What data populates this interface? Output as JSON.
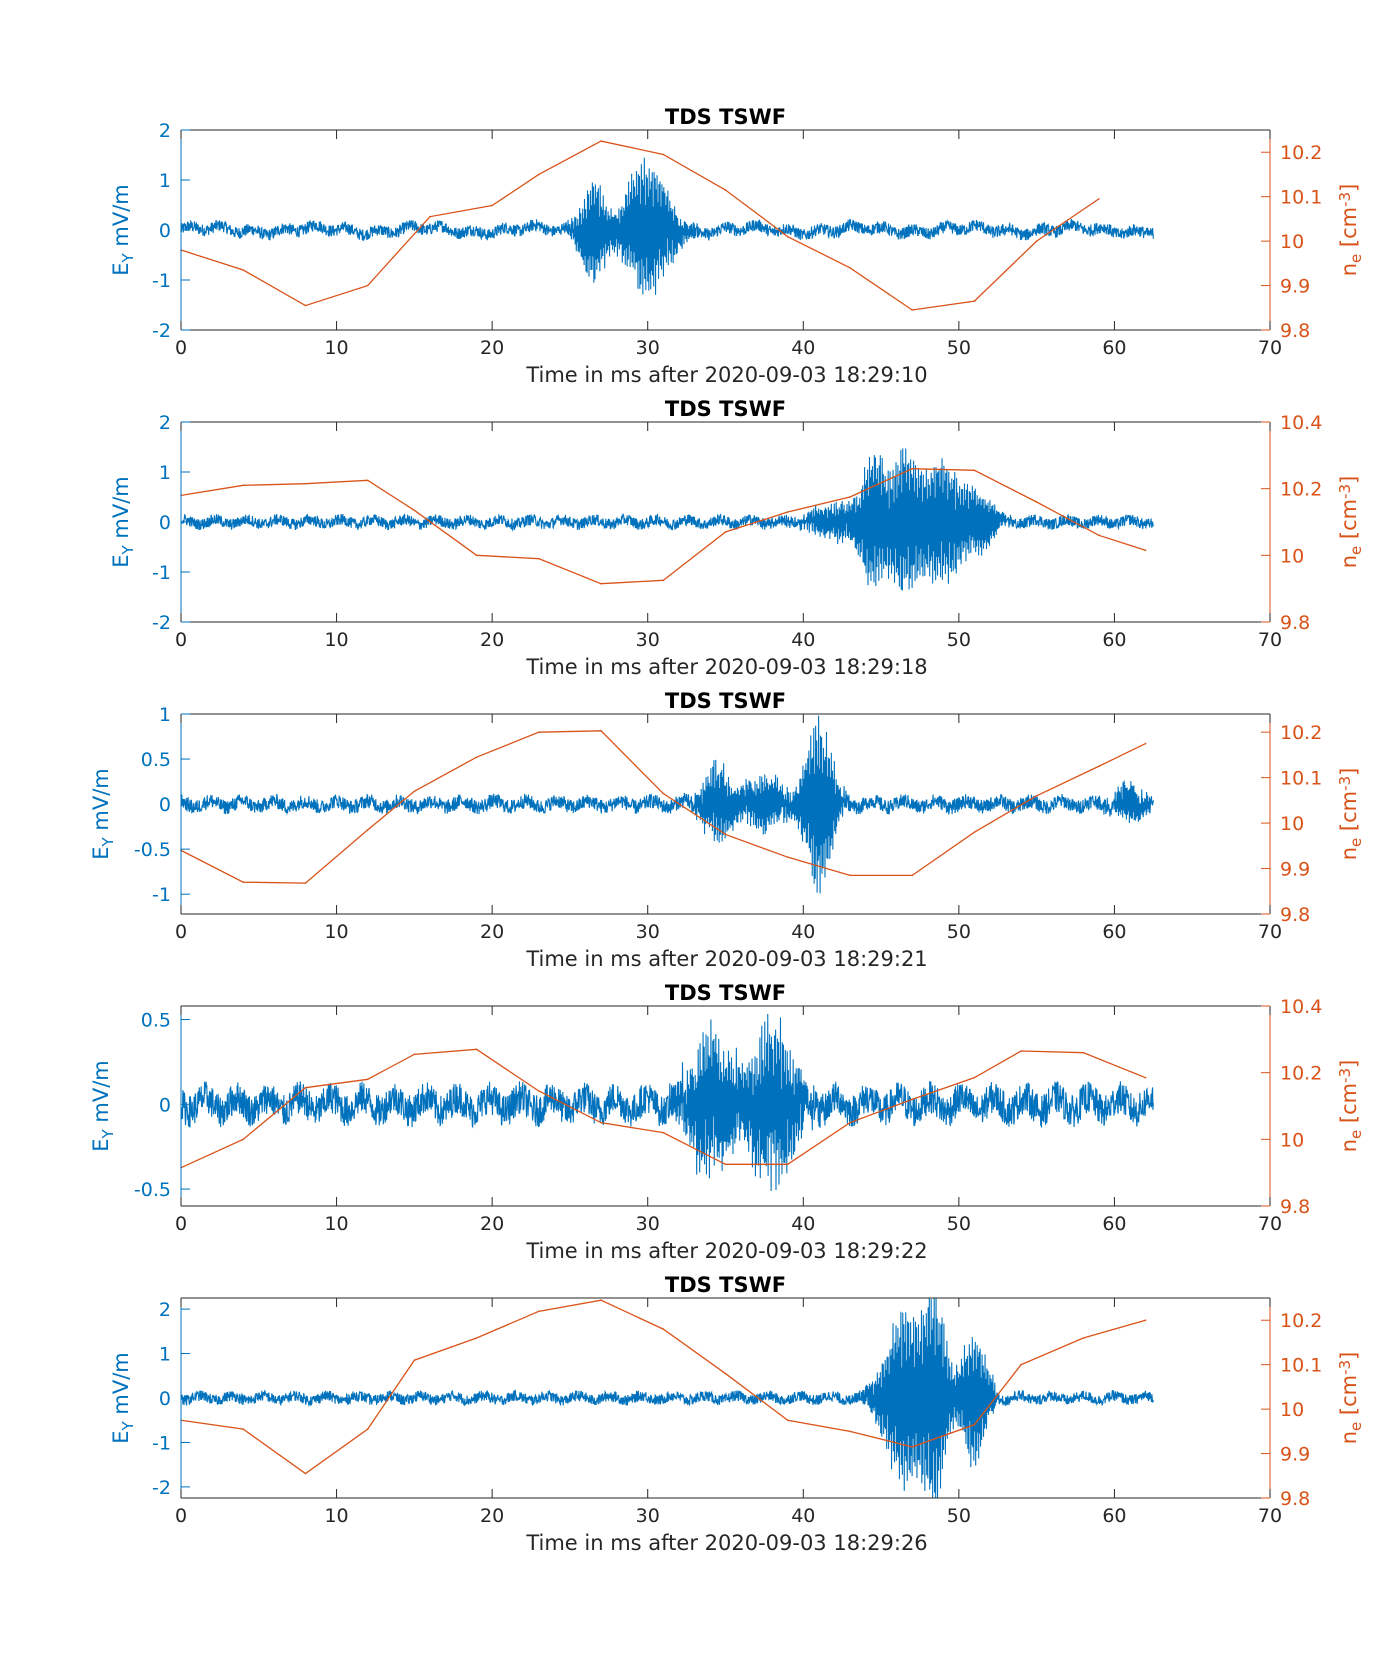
{
  "colors": {
    "ey": "#0072BD",
    "ne": "#D95319",
    "axis": "#262626"
  },
  "chart_data": [
    {
      "type": "line",
      "title": "TDS TSWF",
      "xlabel": "Time in ms after 2020-09-03 18:29:10",
      "ylabel_left": {
        "main": "E",
        "sub": "Y",
        "unit": " mV/m"
      },
      "ylabel_right": {
        "main": "n",
        "sub": "e",
        "unit_pre": " [cm",
        "sup": "-3",
        "unit_post": "]"
      },
      "xlim": [
        0,
        70
      ],
      "xticks": [
        0,
        10,
        20,
        30,
        40,
        50,
        60,
        70
      ],
      "ylim_left": [
        -2,
        2
      ],
      "yticks_left": [
        -2,
        -1,
        0,
        1,
        2
      ],
      "ylim_right": [
        9.8,
        10.25
      ],
      "yticks_right": [
        "9.8",
        "9.9",
        "10",
        "10.1",
        "10.2"
      ],
      "grid": false,
      "ey_series": {
        "name": "E_Y",
        "t_end": 62.5,
        "noise_amp": 0.15,
        "offset": 0.05,
        "bursts": [
          {
            "center": 26.5,
            "width": 1.0,
            "amp": 1.05
          },
          {
            "center": 30.0,
            "width": 1.7,
            "amp": 1.45
          }
        ]
      },
      "ne_series": {
        "name": "n_e",
        "x": [
          0,
          4,
          8,
          12,
          16,
          20,
          23,
          27,
          31,
          35,
          39,
          43,
          47,
          51,
          55,
          59
        ],
        "y": [
          9.98,
          9.935,
          9.855,
          9.9,
          10.055,
          10.08,
          10.15,
          10.225,
          10.195,
          10.115,
          10.01,
          9.94,
          9.845,
          9.865,
          10.0,
          10.095
        ]
      }
    },
    {
      "type": "line",
      "title": "TDS TSWF",
      "xlabel": "Time in ms after 2020-09-03 18:29:18",
      "ylabel_left": {
        "main": "E",
        "sub": "Y",
        "unit": " mV/m"
      },
      "ylabel_right": {
        "main": "n",
        "sub": "e",
        "unit_pre": " [cm",
        "sup": "-3",
        "unit_post": "]"
      },
      "xlim": [
        0,
        70
      ],
      "xticks": [
        0,
        10,
        20,
        30,
        40,
        50,
        60,
        70
      ],
      "ylim_left": [
        -2,
        2
      ],
      "yticks_left": [
        -2,
        -1,
        0,
        1,
        2
      ],
      "ylim_right": [
        9.8,
        10.4
      ],
      "yticks_right": [
        "9.8",
        "10",
        "10.2",
        "10.4"
      ],
      "grid": false,
      "ey_series": {
        "name": "E_Y",
        "t_end": 62.5,
        "noise_amp": 0.14,
        "offset": 0.0,
        "bursts": [
          {
            "center": 42.5,
            "width": 2.2,
            "amp": 0.4
          },
          {
            "center": 44.5,
            "width": 0.9,
            "amp": 1.3
          },
          {
            "center": 46.5,
            "width": 1.1,
            "amp": 1.5
          },
          {
            "center": 49.0,
            "width": 1.5,
            "amp": 1.4
          },
          {
            "center": 51.5,
            "width": 1.0,
            "amp": 0.6
          }
        ]
      },
      "ne_series": {
        "name": "n_e",
        "x": [
          0,
          4,
          8,
          12,
          15,
          19,
          23,
          27,
          31,
          35,
          39,
          43,
          47,
          51,
          55,
          59,
          62
        ],
        "y": [
          10.18,
          10.21,
          10.215,
          10.225,
          10.135,
          10.0,
          9.99,
          9.915,
          9.925,
          10.07,
          10.13,
          10.175,
          10.26,
          10.255,
          10.16,
          10.06,
          10.015
        ]
      }
    },
    {
      "type": "line",
      "title": "TDS TSWF",
      "xlabel": "Time in ms after 2020-09-03 18:29:21",
      "ylabel_left": {
        "main": "E",
        "sub": "Y",
        "unit": " mV/m"
      },
      "ylabel_right": {
        "main": "n",
        "sub": "e",
        "unit_pre": " [cm",
        "sup": "-3",
        "unit_post": "]"
      },
      "xlim": [
        0,
        70
      ],
      "xticks": [
        0,
        10,
        20,
        30,
        40,
        50,
        60,
        70
      ],
      "ylim_left": [
        -1.22,
        1
      ],
      "yticks_left": [
        -1,
        -0.5,
        0,
        0.5,
        1
      ],
      "ytick_labels_left": [
        "-1",
        "-0.5",
        "0",
        "0.5",
        "1"
      ],
      "ylim_right": [
        9.8,
        10.24
      ],
      "yticks_right": [
        "9.8",
        "9.9",
        "10",
        "10.1",
        "10.2"
      ],
      "grid": false,
      "ey_series": {
        "name": "E_Y",
        "t_end": 62.5,
        "noise_amp": 0.1,
        "offset": 0.0,
        "bursts": [
          {
            "center": 34.5,
            "width": 1.2,
            "amp": 0.45
          },
          {
            "center": 37.5,
            "width": 1.4,
            "amp": 0.35
          },
          {
            "center": 41.0,
            "width": 1.1,
            "amp": 1.0
          },
          {
            "center": 61.0,
            "width": 1.2,
            "amp": 0.22
          }
        ]
      },
      "ne_series": {
        "name": "n_e",
        "x": [
          0,
          4,
          8,
          12,
          15,
          19,
          23,
          27,
          31,
          35,
          39,
          43,
          47,
          51,
          55,
          59,
          62
        ],
        "y": [
          9.94,
          9.87,
          9.868,
          9.985,
          10.07,
          10.145,
          10.2,
          10.203,
          10.065,
          9.975,
          9.925,
          9.885,
          9.885,
          9.98,
          10.06,
          10.125,
          10.175
        ]
      }
    },
    {
      "type": "line",
      "title": "TDS TSWF",
      "xlabel": "Time in ms after 2020-09-03 18:29:22",
      "ylabel_left": {
        "main": "E",
        "sub": "Y",
        "unit": " mV/m"
      },
      "ylabel_right": {
        "main": "n",
        "sub": "e",
        "unit_pre": " [cm",
        "sup": "-3",
        "unit_post": "]"
      },
      "xlim": [
        0,
        70
      ],
      "xticks": [
        0,
        10,
        20,
        30,
        40,
        50,
        60,
        70
      ],
      "ylim_left": [
        -0.6,
        0.58
      ],
      "yticks_left": [
        -0.5,
        0,
        0.5
      ],
      "ytick_labels_left": [
        "-0.5",
        "0",
        "0.5"
      ],
      "ylim_right": [
        9.8,
        10.4
      ],
      "yticks_right": [
        "9.8",
        "10",
        "10.2",
        "10.4"
      ],
      "grid": false,
      "ey_series": {
        "name": "E_Y",
        "t_end": 62.5,
        "noise_amp": 0.12,
        "offset": 0.0,
        "bursts": [
          {
            "center": 34.0,
            "width": 1.6,
            "amp": 0.45
          },
          {
            "center": 38.0,
            "width": 1.8,
            "amp": 0.5
          }
        ]
      },
      "ne_series": {
        "name": "n_e",
        "x": [
          0,
          4,
          8,
          12,
          15,
          19,
          23,
          27,
          31,
          35,
          39,
          43,
          47,
          51,
          54,
          58,
          62
        ],
        "y": [
          9.915,
          10.0,
          10.155,
          10.18,
          10.255,
          10.27,
          10.145,
          10.05,
          10.02,
          9.925,
          9.925,
          10.05,
          10.12,
          10.185,
          10.265,
          10.26,
          10.185
        ]
      }
    },
    {
      "type": "line",
      "title": "TDS TSWF",
      "xlabel": "Time in ms after 2020-09-03 18:29:26",
      "ylabel_left": {
        "main": "E",
        "sub": "Y",
        "unit": " mV/m"
      },
      "ylabel_right": {
        "main": "n",
        "sub": "e",
        "unit_pre": " [cm",
        "sup": "-3",
        "unit_post": "]"
      },
      "xlim": [
        0,
        70
      ],
      "xticks": [
        0,
        10,
        20,
        30,
        40,
        50,
        60,
        70
      ],
      "ylim_left": [
        -2.25,
        2.25
      ],
      "yticks_left": [
        -2,
        -1,
        0,
        1,
        2
      ],
      "ylim_right": [
        9.8,
        10.25
      ],
      "yticks_right": [
        "9.8",
        "9.9",
        "10",
        "10.1",
        "10.2"
      ],
      "grid": false,
      "ey_series": {
        "name": "E_Y",
        "t_end": 62.5,
        "noise_amp": 0.15,
        "offset": 0.0,
        "bursts": [
          {
            "center": 46.5,
            "width": 1.6,
            "amp": 2.1
          },
          {
            "center": 48.5,
            "width": 0.9,
            "amp": 2.2
          },
          {
            "center": 51.0,
            "width": 1.0,
            "amp": 1.6
          }
        ]
      },
      "ne_series": {
        "name": "n_e",
        "x": [
          0,
          4,
          8,
          12,
          15,
          19,
          23,
          27,
          31,
          35,
          39,
          43,
          47,
          51,
          54,
          58,
          62
        ],
        "y": [
          9.975,
          9.955,
          9.855,
          9.955,
          10.11,
          10.16,
          10.22,
          10.245,
          10.18,
          10.08,
          9.975,
          9.95,
          9.915,
          9.965,
          10.1,
          10.16,
          10.2
        ]
      }
    }
  ]
}
